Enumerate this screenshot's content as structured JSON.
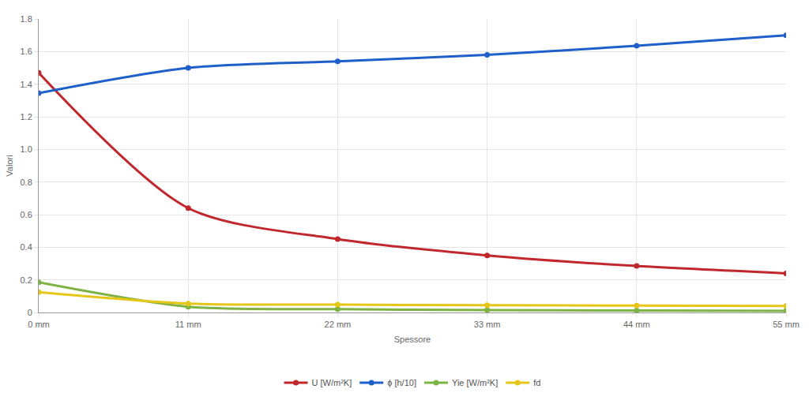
{
  "chart_data": {
    "type": "line",
    "x_label": "Spessore",
    "y_label": "Valori",
    "x": [
      0,
      11,
      22,
      33,
      44,
      55
    ],
    "xlim": [
      0,
      55
    ],
    "xticks": [
      {
        "value": 0,
        "label": "0 mm"
      },
      {
        "value": 11,
        "label": "11 mm"
      },
      {
        "value": 22,
        "label": "22 mm"
      },
      {
        "value": 33,
        "label": "33 mm"
      },
      {
        "value": 44,
        "label": "44 mm"
      },
      {
        "value": 55,
        "label": "55 mm"
      }
    ],
    "ylim": [
      0,
      1.8
    ],
    "yticks": [
      0,
      0.2,
      0.4,
      0.6,
      0.8,
      {
        "value": 1,
        "label": "1.0"
      },
      1.2,
      1.4,
      1.6,
      1.8
    ],
    "grid": true,
    "legend": "bottom",
    "marker": "circle",
    "line_style": "spline",
    "series": [
      {
        "name": "U [W/m²K]",
        "color": "#c0282d",
        "values": [
          1.47,
          0.64,
          0.45,
          0.35,
          0.285,
          0.24
        ]
      },
      {
        "name": "ϕ [h/10]",
        "color": "#1f5fc9",
        "values": [
          1.345,
          1.5,
          1.54,
          1.58,
          1.635,
          1.7
        ]
      },
      {
        "name": "Yie [W/m²K]",
        "color": "#7cb342",
        "values": [
          0.185,
          0.035,
          0.02,
          0.015,
          0.012,
          0.01
        ]
      },
      {
        "name": "fd",
        "color": "#e6c619",
        "values": [
          0.125,
          0.055,
          0.048,
          0.045,
          0.042,
          0.04
        ]
      }
    ]
  }
}
